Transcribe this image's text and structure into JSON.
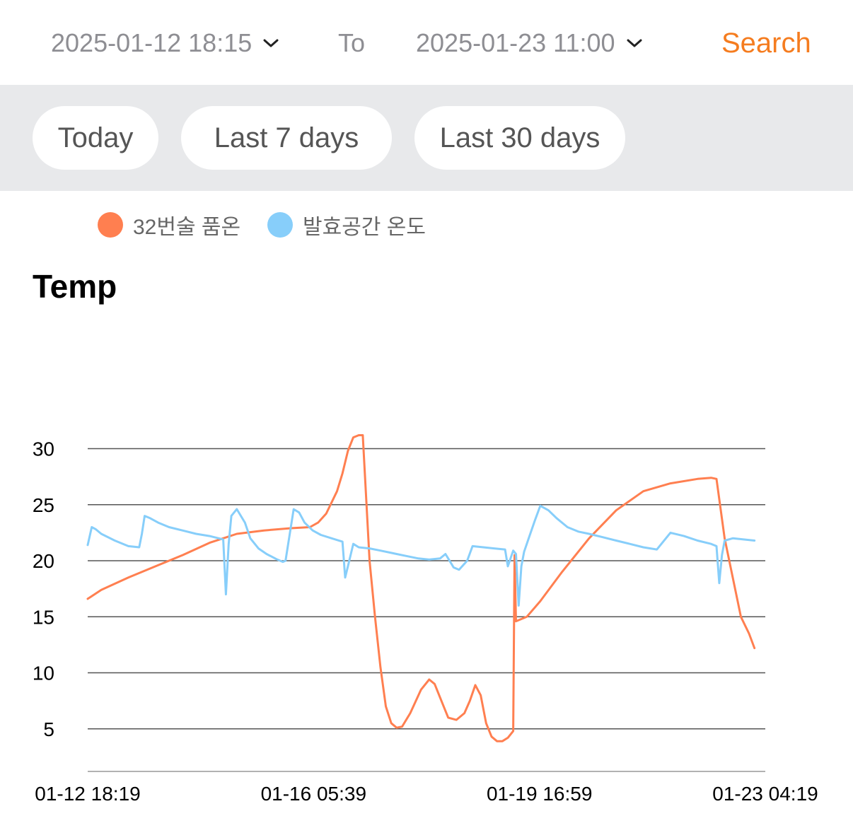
{
  "filters": {
    "start_date": "2025-01-12 18:15",
    "to_label": "To",
    "end_date": "2025-01-23 11:00",
    "search_label": "Search",
    "chips": [
      "Today",
      "Last 7 days",
      "Last 30 days"
    ]
  },
  "colors": {
    "accent": "#f57c1f",
    "series_orange": "#ff7f50",
    "series_blue": "#87cefa"
  },
  "chart_data": {
    "type": "line",
    "title": "Temp",
    "xlabel": "",
    "ylabel": "",
    "ylim": [
      1,
      32
    ],
    "yticks": [
      5,
      10,
      15,
      20,
      25,
      30
    ],
    "x_tick_labels": [
      "01-12 18:19",
      "01-16 05:39",
      "01-19 16:59",
      "01-23 04:19"
    ],
    "x_tick_hours": [
      0,
      83.33,
      166.67,
      250.0
    ],
    "x_range_hours": [
      0,
      250.0
    ],
    "grid": true,
    "legend_position": "top-left",
    "series": [
      {
        "name": "32번술 품온",
        "color": "#ff7f50",
        "points": [
          [
            0,
            16.6
          ],
          [
            5,
            17.4
          ],
          [
            15,
            18.5
          ],
          [
            25,
            19.5
          ],
          [
            35,
            20.5
          ],
          [
            45,
            21.6
          ],
          [
            55,
            22.4
          ],
          [
            65,
            22.7
          ],
          [
            75,
            22.9
          ],
          [
            82,
            23.0
          ],
          [
            85,
            23.4
          ],
          [
            88,
            24.2
          ],
          [
            92,
            26.2
          ],
          [
            94,
            27.8
          ],
          [
            96,
            29.8
          ],
          [
            98,
            31.0
          ],
          [
            100,
            31.2
          ],
          [
            101.5,
            31.2
          ],
          [
            104,
            20
          ],
          [
            106,
            15
          ],
          [
            108,
            10.5
          ],
          [
            110,
            7
          ],
          [
            112,
            5.5
          ],
          [
            114,
            5.1
          ],
          [
            116,
            5.2
          ],
          [
            119,
            6.4
          ],
          [
            123,
            8.5
          ],
          [
            126,
            9.4
          ],
          [
            128,
            9.0
          ],
          [
            131,
            7.2
          ],
          [
            133,
            6.0
          ],
          [
            136,
            5.8
          ],
          [
            139,
            6.4
          ],
          [
            141,
            7.5
          ],
          [
            143,
            8.9
          ],
          [
            145,
            8.0
          ],
          [
            147,
            5.5
          ],
          [
            149,
            4.3
          ],
          [
            151,
            3.9
          ],
          [
            153,
            3.9
          ],
          [
            155,
            4.2
          ],
          [
            157,
            4.8
          ],
          [
            157.5,
            20.5
          ],
          [
            158,
            14.6
          ],
          [
            162,
            15.0
          ],
          [
            167,
            16.4
          ],
          [
            175,
            19.0
          ],
          [
            185,
            22.0
          ],
          [
            195,
            24.5
          ],
          [
            205,
            26.2
          ],
          [
            215,
            26.9
          ],
          [
            225,
            27.3
          ],
          [
            230,
            27.4
          ],
          [
            232,
            27.3
          ],
          [
            235,
            22.0
          ],
          [
            238,
            18.5
          ],
          [
            241,
            15.0
          ],
          [
            244,
            13.5
          ],
          [
            246,
            12.2
          ]
        ]
      },
      {
        "name": "발효공간 온도",
        "color": "#87cefa",
        "points": [
          [
            0,
            21.4
          ],
          [
            1.5,
            23.0
          ],
          [
            3,
            22.8
          ],
          [
            5,
            22.4
          ],
          [
            10,
            21.8
          ],
          [
            15,
            21.3
          ],
          [
            19,
            21.2
          ],
          [
            20,
            22.4
          ],
          [
            21,
            24.0
          ],
          [
            23,
            23.8
          ],
          [
            26,
            23.4
          ],
          [
            30,
            23.0
          ],
          [
            35,
            22.7
          ],
          [
            40,
            22.4
          ],
          [
            45,
            22.2
          ],
          [
            50,
            21.9
          ],
          [
            51,
            17.0
          ],
          [
            52,
            21.5
          ],
          [
            53,
            24.0
          ],
          [
            55,
            24.6
          ],
          [
            58,
            23.4
          ],
          [
            60,
            22.0
          ],
          [
            63,
            21.1
          ],
          [
            66,
            20.6
          ],
          [
            70,
            20.1
          ],
          [
            72,
            19.9
          ],
          [
            73,
            20.0
          ],
          [
            76,
            24.6
          ],
          [
            78,
            24.3
          ],
          [
            80,
            23.4
          ],
          [
            83,
            22.7
          ],
          [
            86,
            22.3
          ],
          [
            90,
            22.0
          ],
          [
            94,
            21.7
          ],
          [
            95,
            18.5
          ],
          [
            96,
            19.5
          ],
          [
            98,
            21.5
          ],
          [
            100,
            21.2
          ],
          [
            104,
            21.1
          ],
          [
            108,
            20.9
          ],
          [
            112,
            20.7
          ],
          [
            114,
            20.6
          ],
          [
            118,
            20.4
          ],
          [
            122,
            20.2
          ],
          [
            126,
            20.1
          ],
          [
            130,
            20.2
          ],
          [
            132,
            20.6
          ],
          [
            133,
            20.2
          ],
          [
            135,
            19.4
          ],
          [
            137,
            19.2
          ],
          [
            140,
            20.0
          ],
          [
            142,
            21.3
          ],
          [
            146,
            21.2
          ],
          [
            150,
            21.1
          ],
          [
            154,
            21.0
          ],
          [
            155,
            19.5
          ],
          [
            157,
            20.9
          ],
          [
            158,
            20.6
          ],
          [
            159,
            16.0
          ],
          [
            160,
            19.5
          ],
          [
            161,
            20.8
          ],
          [
            163,
            22.2
          ],
          [
            165,
            23.6
          ],
          [
            167,
            24.9
          ],
          [
            170,
            24.5
          ],
          [
            173,
            23.8
          ],
          [
            177,
            23.0
          ],
          [
            181,
            22.6
          ],
          [
            185,
            22.4
          ],
          [
            190,
            22.1
          ],
          [
            195,
            21.8
          ],
          [
            200,
            21.5
          ],
          [
            205,
            21.2
          ],
          [
            210,
            21.0
          ],
          [
            215,
            22.5
          ],
          [
            220,
            22.2
          ],
          [
            225,
            21.8
          ],
          [
            230,
            21.5
          ],
          [
            232,
            21.3
          ],
          [
            233,
            18.0
          ],
          [
            234,
            20.5
          ],
          [
            235,
            21.8
          ],
          [
            238,
            22.0
          ],
          [
            242,
            21.9
          ],
          [
            246,
            21.8
          ]
        ]
      }
    ]
  }
}
